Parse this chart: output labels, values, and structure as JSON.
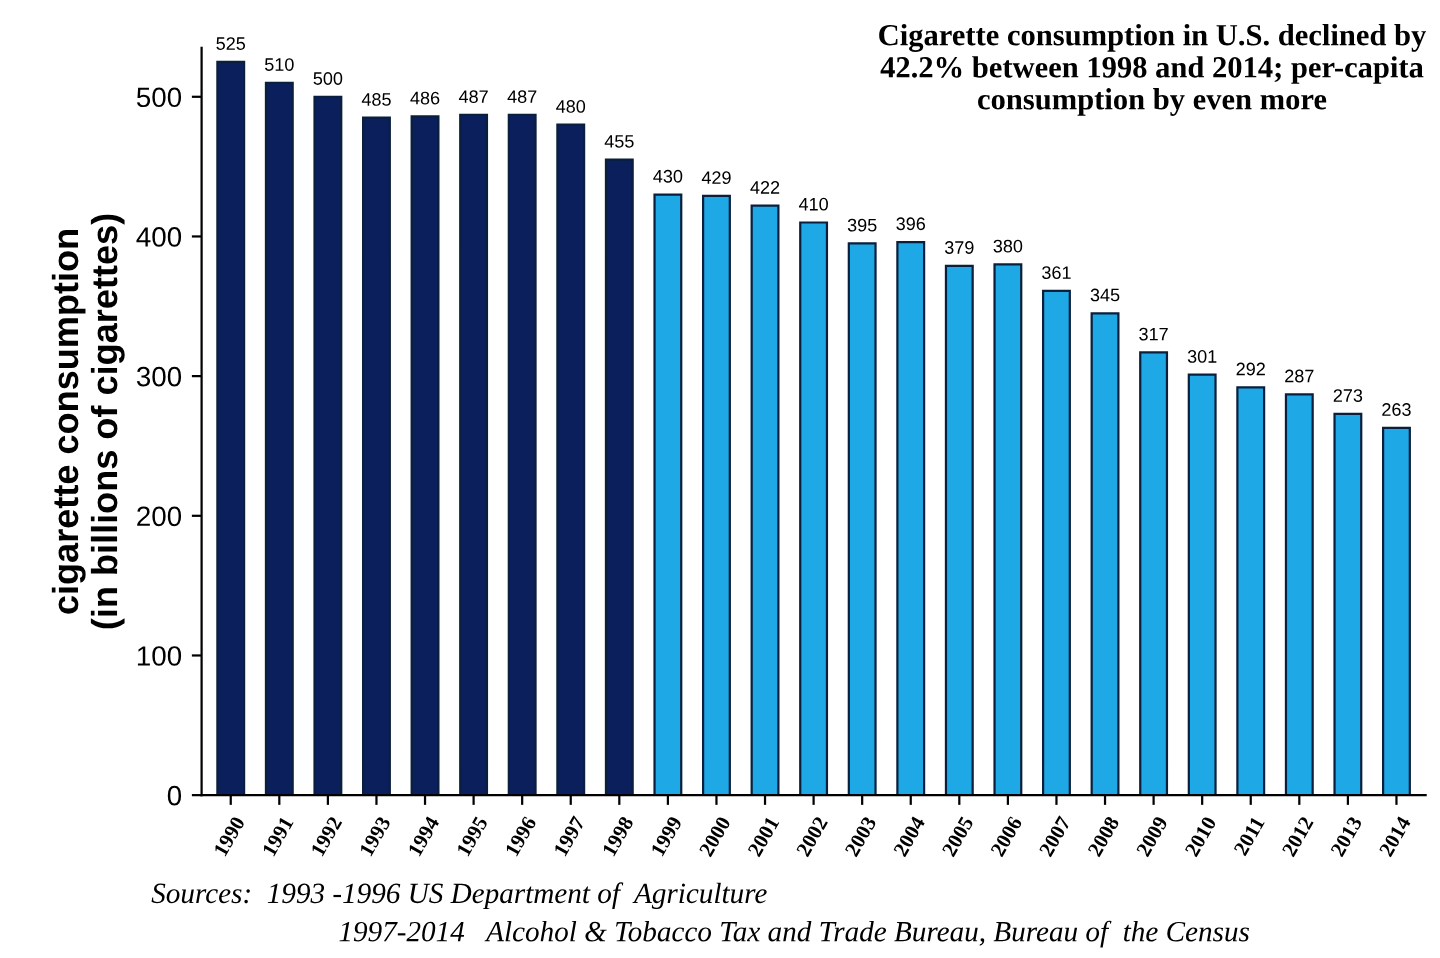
{
  "chart_data": {
    "type": "bar",
    "title": "Cigarette consumption in U.S. declined by 42.2% between 1998 and 2014; per-capita consumption by even more",
    "ylabel": "cigarette consumption\n(in billions of cigarettes)",
    "categories": [
      "1990",
      "1991",
      "1992",
      "1993",
      "1994",
      "1995",
      "1996",
      "1997",
      "1998",
      "1999",
      "2000",
      "2001",
      "2002",
      "2003",
      "2004",
      "2005",
      "2006",
      "2007",
      "2008",
      "2009",
      "2010",
      "2011",
      "2012",
      "2013",
      "2014"
    ],
    "values": [
      525,
      510,
      500,
      485,
      486,
      487,
      487,
      480,
      455,
      430,
      429,
      422,
      410,
      395,
      396,
      379,
      380,
      361,
      345,
      317,
      301,
      292,
      287,
      273,
      263
    ],
    "colors": [
      "#0a1f5c",
      "#0a1f5c",
      "#0a1f5c",
      "#0a1f5c",
      "#0a1f5c",
      "#0a1f5c",
      "#0a1f5c",
      "#0a1f5c",
      "#0a1f5c",
      "#1ea8e6",
      "#1ea8e6",
      "#1ea8e6",
      "#1ea8e6",
      "#1ea8e6",
      "#1ea8e6",
      "#1ea8e6",
      "#1ea8e6",
      "#1ea8e6",
      "#1ea8e6",
      "#1ea8e6",
      "#1ea8e6",
      "#1ea8e6",
      "#1ea8e6",
      "#1ea8e6",
      "#1ea8e6"
    ],
    "data_labels": true,
    "ylim": [
      0,
      535
    ],
    "yticks": [
      0,
      100,
      200,
      300,
      400,
      500
    ],
    "grid": false,
    "annotations": [
      "Sources:  1993 -1996 US Department of  Agriculture",
      "1997-2014   Alcohol & Tobacco Tax and Trade Bureau, Bureau of  the Census"
    ]
  }
}
